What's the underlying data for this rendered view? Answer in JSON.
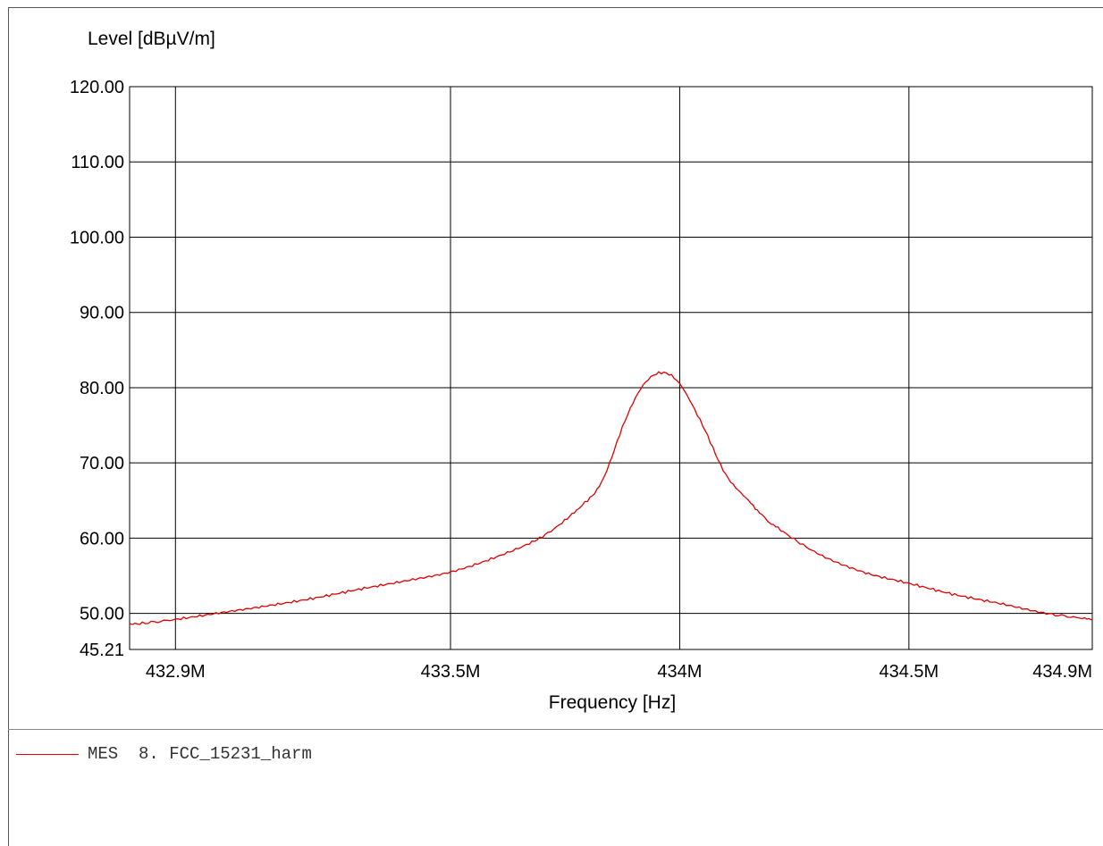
{
  "chart_data": {
    "type": "line",
    "title": "",
    "xlabel": "Frequency [Hz]",
    "ylabel": "Level [dBµV/m]",
    "xlim": [
      432.8,
      434.9
    ],
    "ylim": [
      45.21,
      120
    ],
    "x_unit_scale": "MHz",
    "xticks": [
      {
        "value": 432.9,
        "label": "432.9M"
      },
      {
        "value": 433.5,
        "label": "433.5M"
      },
      {
        "value": 434.0,
        "label": "434M"
      },
      {
        "value": 434.5,
        "label": "434.5M"
      },
      {
        "value": 434.9,
        "label": "434.9M"
      }
    ],
    "yticks": [
      {
        "value": 45.21,
        "label": "45.21"
      },
      {
        "value": 50,
        "label": "50.00"
      },
      {
        "value": 60,
        "label": "60.00"
      },
      {
        "value": 70,
        "label": "70.00"
      },
      {
        "value": 80,
        "label": "80.00"
      },
      {
        "value": 90,
        "label": "90.00"
      },
      {
        "value": 100,
        "label": "100.00"
      },
      {
        "value": 110,
        "label": "110.00"
      },
      {
        "value": 120,
        "label": "120.00"
      }
    ],
    "grid": true,
    "series": [
      {
        "name": "MES  8. FCC_15231_harm",
        "color": "#e00000",
        "x": [
          432.8,
          432.9,
          433.0,
          433.1,
          433.2,
          433.3,
          433.4,
          433.5,
          433.6,
          433.7,
          433.78,
          433.83,
          433.88,
          433.92,
          433.96,
          434.0,
          434.05,
          434.1,
          434.15,
          434.2,
          434.3,
          434.4,
          434.5,
          434.6,
          434.7,
          434.8,
          434.9
        ],
        "values": [
          48.5,
          49.2,
          50.1,
          51.0,
          52.0,
          53.2,
          54.3,
          55.5,
          57.5,
          60.2,
          64.0,
          67.5,
          75.5,
          80.3,
          82.0,
          80.5,
          75.0,
          68.5,
          65.0,
          62.0,
          58.0,
          55.5,
          54.0,
          52.5,
          51.3,
          50.0,
          49.2
        ]
      }
    ]
  },
  "legend": {
    "entry": "MES  8. FCC_15231_harm",
    "color": "#e00000"
  }
}
